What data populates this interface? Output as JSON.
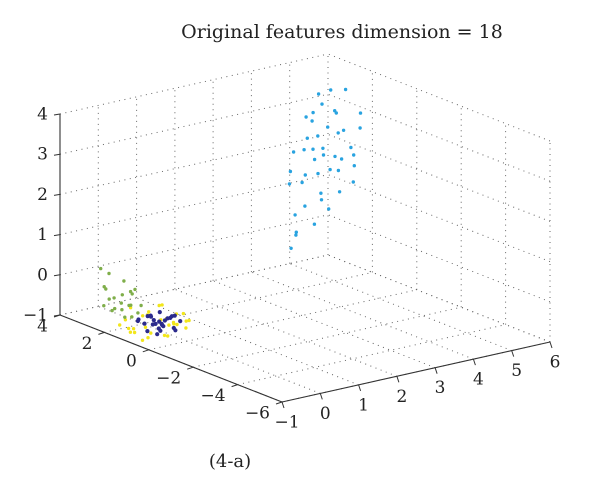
{
  "figure": {
    "title": "Original features dimension = 18",
    "caption": "(4-a)"
  },
  "chart_data": {
    "type": "scatter",
    "projection": "3d",
    "title": "Original features dimension = 18",
    "xlabel": "",
    "ylabel": "",
    "zlabel": "",
    "xlim": [
      -1,
      6
    ],
    "ylim": [
      -6,
      4
    ],
    "zlim": [
      -1,
      4
    ],
    "x_ticks": [
      -1,
      0,
      1,
      2,
      3,
      4,
      5,
      6
    ],
    "y_ticks": [
      -6,
      -4,
      -2,
      0,
      2,
      4
    ],
    "z_ticks": [
      -1,
      0,
      1,
      2,
      3,
      4
    ],
    "grid": true,
    "legend": "none",
    "series": [
      {
        "color": "#29a3e0",
        "points": [
          [
            4.3,
            1.3,
            2.6
          ],
          [
            4.6,
            1.6,
            3.0
          ],
          [
            4.2,
            0.8,
            2.2
          ],
          [
            5.0,
            1.9,
            3.2
          ],
          [
            3.8,
            0.5,
            1.6
          ],
          [
            4.5,
            1.1,
            2.4
          ],
          [
            3.9,
            1.4,
            2.0
          ],
          [
            4.8,
            2.2,
            3.4
          ],
          [
            4.1,
            0.2,
            1.8
          ],
          [
            3.6,
            0.9,
            1.4
          ],
          [
            4.4,
            1.7,
            2.8
          ],
          [
            5.2,
            2.5,
            3.6
          ],
          [
            4.0,
            1.0,
            2.1
          ],
          [
            4.7,
            0.6,
            2.5
          ],
          [
            3.5,
            0.3,
            1.1
          ],
          [
            4.9,
            1.4,
            2.9
          ],
          [
            4.3,
            2.0,
            2.7
          ],
          [
            3.7,
            1.2,
            1.9
          ],
          [
            4.6,
            0.4,
            2.3
          ],
          [
            5.1,
            1.0,
            3.0
          ],
          [
            4.2,
            1.5,
            2.3
          ],
          [
            3.9,
            0.7,
            1.7
          ],
          [
            4.5,
            2.4,
            3.1
          ],
          [
            5.3,
            2.0,
            3.7
          ],
          [
            4.1,
            1.8,
            2.5
          ],
          [
            3.4,
            1.0,
            1.2
          ],
          [
            4.8,
            0.9,
            2.6
          ],
          [
            4.4,
            0.1,
            2.0
          ],
          [
            4.0,
            2.1,
            2.4
          ],
          [
            4.7,
            1.3,
            2.9
          ],
          [
            3.6,
            1.6,
            1.8
          ],
          [
            5.0,
            2.7,
            3.5
          ],
          [
            4.3,
            0.6,
            2.2
          ],
          [
            4.9,
            1.8,
            3.3
          ],
          [
            3.8,
            1.9,
            2.0
          ],
          [
            4.2,
            1.1,
            2.5
          ],
          [
            4.6,
            2.3,
            3.0
          ],
          [
            5.4,
            1.5,
            3.2
          ],
          [
            3.2,
            0.6,
            0.9
          ],
          [
            4.5,
            0.8,
            2.4
          ],
          [
            2.6,
            -0.2,
            0.8
          ],
          [
            2.9,
            0.1,
            1.0
          ],
          [
            4.1,
            1.4,
            2.6
          ],
          [
            4.8,
            2.6,
            3.1
          ],
          [
            3.7,
            0.0,
            1.5
          ]
        ]
      },
      {
        "color": "#f2e61a",
        "points": [
          [
            -0.6,
            1.6,
            -0.9
          ],
          [
            -0.3,
            1.4,
            -0.8
          ],
          [
            0.1,
            1.1,
            -0.7
          ],
          [
            -0.5,
            0.9,
            -1.0
          ],
          [
            -0.2,
            1.3,
            -0.6
          ],
          [
            0.2,
            0.8,
            -0.8
          ],
          [
            -0.4,
            1.8,
            -0.7
          ],
          [
            0.0,
            1.5,
            -0.9
          ],
          [
            -0.7,
            1.2,
            -0.8
          ],
          [
            0.3,
            1.0,
            -0.6
          ],
          [
            -0.1,
            0.7,
            -1.0
          ],
          [
            0.4,
            1.3,
            -0.9
          ],
          [
            -0.6,
            0.6,
            -0.8
          ],
          [
            0.1,
            1.9,
            -0.7
          ],
          [
            -0.3,
            0.5,
            -0.9
          ],
          [
            0.2,
            1.6,
            -0.5
          ],
          [
            -0.8,
            1.4,
            -0.6
          ],
          [
            0.5,
            0.9,
            -0.8
          ],
          [
            -0.2,
            1.0,
            -1.0
          ],
          [
            0.0,
            0.6,
            -0.7
          ],
          [
            -0.4,
            1.1,
            -0.5
          ],
          [
            0.3,
            1.7,
            -0.9
          ],
          [
            -0.5,
            1.5,
            -1.0
          ],
          [
            0.1,
            1.3,
            -0.4
          ],
          [
            -0.9,
            1.0,
            -0.8
          ],
          [
            -0.2,
            2.2,
            -0.6
          ],
          [
            0.4,
            0.6,
            -0.7
          ],
          [
            -0.6,
            2.0,
            -0.9
          ],
          [
            0.2,
            0.4,
            -0.8
          ],
          [
            -0.1,
            1.7,
            -1.0
          ],
          [
            0.6,
            1.2,
            -0.7
          ],
          [
            -0.3,
            0.3,
            -0.6
          ],
          [
            0.0,
            2.0,
            -0.8
          ],
          [
            -0.7,
            0.8,
            -1.0
          ]
        ]
      },
      {
        "color": "#7fae4a",
        "points": [
          [
            -0.5,
            2.1,
            -0.4
          ],
          [
            -0.3,
            2.4,
            -0.3
          ],
          [
            -0.6,
            1.9,
            -0.5
          ],
          [
            -0.2,
            2.2,
            -0.2
          ],
          [
            -0.4,
            2.6,
            -0.4
          ],
          [
            -0.7,
            2.3,
            -0.3
          ],
          [
            -0.1,
            1.9,
            -0.5
          ],
          [
            -0.5,
            2.8,
            -0.2
          ],
          [
            -0.3,
            1.7,
            -0.6
          ],
          [
            -0.8,
            2.0,
            -0.5
          ],
          [
            -0.2,
            2.5,
            0.0
          ],
          [
            -0.6,
            2.7,
            -0.1
          ],
          [
            -0.4,
            1.8,
            -0.7
          ],
          [
            -0.1,
            2.3,
            -0.3
          ],
          [
            -0.7,
            1.6,
            -0.6
          ],
          [
            -0.3,
            3.0,
            0.1
          ],
          [
            -0.5,
            2.4,
            -0.6
          ],
          [
            -0.9,
            2.2,
            -0.4
          ],
          [
            -0.2,
            2.0,
            -0.1
          ],
          [
            -0.4,
            3.2,
            0.2
          ],
          [
            -0.6,
            1.5,
            -0.3
          ],
          [
            -0.3,
            2.1,
            -0.5
          ]
        ]
      },
      {
        "color": "#2b2a8c",
        "points": [
          [
            -0.2,
            1.2,
            -0.8
          ],
          [
            0.0,
            1.0,
            -0.7
          ],
          [
            -0.3,
            1.4,
            -0.8
          ],
          [
            0.1,
            1.3,
            -0.9
          ],
          [
            -0.1,
            0.9,
            -0.8
          ],
          [
            0.2,
            1.1,
            -0.7
          ],
          [
            -0.4,
            1.1,
            -0.9
          ],
          [
            0.0,
            1.5,
            -0.8
          ],
          [
            -0.2,
            0.8,
            -0.7
          ],
          [
            0.3,
            1.4,
            -0.8
          ],
          [
            -0.1,
            1.6,
            -0.7
          ],
          [
            0.1,
            0.7,
            -0.9
          ],
          [
            -0.3,
            0.9,
            -0.7
          ],
          [
            0.2,
            1.6,
            -0.9
          ],
          [
            -0.2,
            1.3,
            -0.6
          ],
          [
            0.0,
            1.2,
            -1.0
          ],
          [
            0.4,
            1.0,
            -0.8
          ],
          [
            -0.4,
            1.5,
            -0.7
          ],
          [
            0.1,
            1.8,
            -0.8
          ],
          [
            -0.1,
            1.1,
            -0.9
          ],
          [
            0.2,
            0.9,
            -0.6
          ],
          [
            -0.3,
            1.7,
            -0.8
          ],
          [
            0.0,
            0.6,
            -0.8
          ],
          [
            0.3,
            1.2,
            -0.7
          ],
          [
            -0.2,
            1.0,
            -1.0
          ],
          [
            0.1,
            1.4,
            -0.6
          ]
        ]
      }
    ]
  }
}
